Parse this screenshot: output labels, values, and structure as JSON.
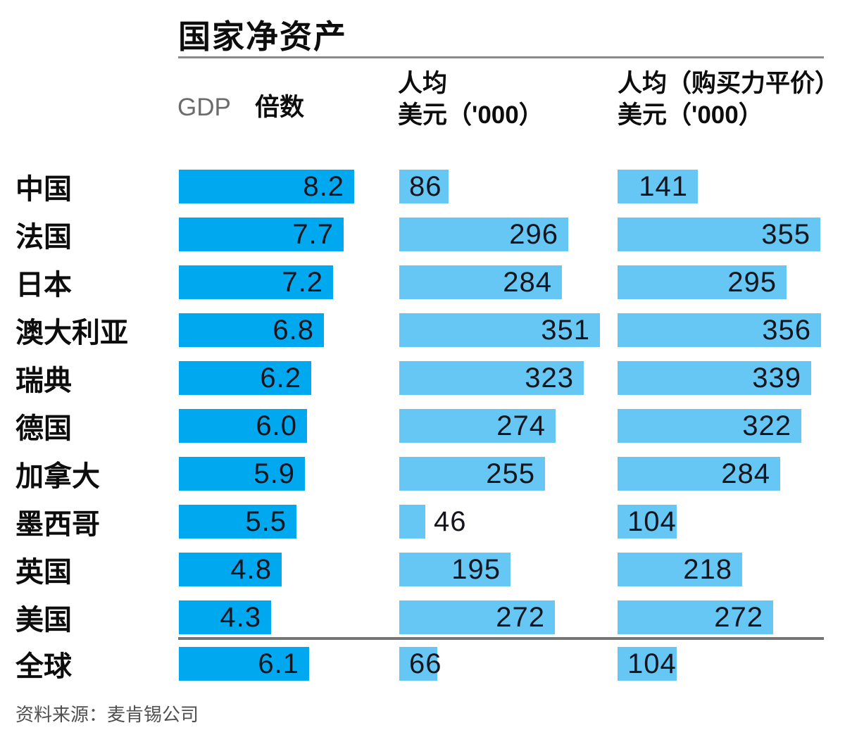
{
  "title": "国家净资产",
  "headers": {
    "gdp": "GDP",
    "multiple": "倍数",
    "per_capita_usd_line1": "人均",
    "per_capita_usd_line2": "美元（'000）",
    "per_capita_ppp_line1": "人均（购买力平价）",
    "per_capita_ppp_line2": "美元（'000）"
  },
  "source": "资料来源：麦肯锡公司",
  "colors": {
    "bar_primary": "#00a9ef",
    "bar_light": "#66c7f4",
    "value_text": "#15151d",
    "label_text": "#0d0d0d",
    "rule_gray": "#8a8a8a",
    "separator_gray": "#757575"
  },
  "chart_data": {
    "type": "bar",
    "orientation": "horizontal",
    "title": "国家净资产",
    "categories": [
      "中国",
      "法国",
      "日本",
      "澳大利亚",
      "瑞典",
      "德国",
      "加拿大",
      "墨西哥",
      "英国",
      "美国",
      "全球"
    ],
    "last_row_is_summary": true,
    "series": [
      {
        "name": "GDP 倍数",
        "values": [
          8.2,
          7.7,
          7.2,
          6.8,
          6.2,
          6.0,
          5.9,
          5.5,
          4.8,
          4.3,
          6.1
        ],
        "labels": [
          "8.2",
          "7.7",
          "7.2",
          "6.8",
          "6.2",
          "6.0",
          "5.9",
          "5.5",
          "4.8",
          "4.3",
          "6.1"
        ],
        "label_pos": [
          "in",
          "in",
          "in",
          "in",
          "in",
          "in",
          "in",
          "in",
          "in",
          "in",
          "in"
        ],
        "axis_max": 8.2
      },
      {
        "name": "人均 美元（'000）",
        "values": [
          86,
          296,
          284,
          351,
          323,
          274,
          255,
          46,
          195,
          272,
          66
        ],
        "labels": [
          "86",
          "296",
          "284",
          "351",
          "323",
          "274",
          "255",
          "46",
          "195",
          "272",
          "66"
        ],
        "label_pos": [
          "in-left",
          "in",
          "in",
          "in",
          "in",
          "in",
          "in",
          "out",
          "in",
          "in",
          "in-left"
        ],
        "axis_max": 356
      },
      {
        "name": "人均（购买力平价）美元（'000）",
        "values": [
          141,
          355,
          295,
          356,
          339,
          322,
          284,
          104,
          218,
          272,
          104
        ],
        "labels": [
          "141",
          "355",
          "295",
          "356",
          "339",
          "322",
          "284",
          "104",
          "218",
          "272",
          "104"
        ],
        "label_pos": [
          "in",
          "in",
          "in",
          "in",
          "in",
          "in",
          "in",
          "in-left",
          "in",
          "in",
          "in-left"
        ],
        "axis_max": 356
      }
    ],
    "legend": "none",
    "grid": false
  }
}
